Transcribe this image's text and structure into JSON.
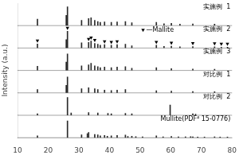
{
  "chart_data": {
    "type": "bar",
    "ylabel": "Intensity (a.u.)",
    "xlim": [
      10,
      80
    ],
    "xticks": [
      10,
      20,
      30,
      40,
      50,
      60,
      70,
      80
    ],
    "ylim": [
      0,
      1.2
    ],
    "tick_labels": "x",
    "grid": false,
    "color": "#2a2a2a",
    "annotations": [
      "—Mallite"
    ],
    "series": [
      {
        "name": "实施例  1",
        "x": [
          16.5,
          25.9,
          26.3,
          30.9,
          33.2,
          34.0,
          35.2,
          36.2,
          37.0,
          38.4,
          40.6,
          42.5,
          45.2,
          47.3,
          55.3,
          57.8,
          60.2,
          63.0,
          67.2,
          74.3
        ],
        "values": [
          0.35,
          0.55,
          1.0,
          0.28,
          0.38,
          0.42,
          0.28,
          0.22,
          0.18,
          0.2,
          0.18,
          0.2,
          0.22,
          0.15,
          0.18,
          0.1,
          0.12,
          0.08,
          0.09,
          0.08
        ]
      },
      {
        "name": "实施例  2",
        "x": [
          16.5,
          25.9,
          26.3,
          30.9,
          33.2,
          34.0,
          35.2,
          36.2,
          37.0,
          38.4,
          40.6,
          42.5,
          45.2,
          47.3,
          55.3,
          57.8,
          60.2,
          63.0,
          67.2,
          74.3,
          76.5,
          78.5
        ],
        "values": [
          0.22,
          0.45,
          0.9,
          0.28,
          0.3,
          0.38,
          0.25,
          0.2,
          0.15,
          0.18,
          0.15,
          0.18,
          0.2,
          0.12,
          0.15,
          0.09,
          0.1,
          0.07,
          0.08,
          0.07,
          0.05,
          0.05
        ],
        "marked_peaks": [
          16.5,
          26.3,
          33.2,
          34.0,
          35.2,
          38.4,
          40.6,
          42.5,
          55.3,
          60.2,
          67.2,
          74.3,
          76.5,
          78.5
        ],
        "marker": "triangle_down"
      },
      {
        "name": "实施例  3",
        "x": [
          16.5,
          25.9,
          26.3,
          30.9,
          33.2,
          34.0,
          35.2,
          36.2,
          37.0,
          38.4,
          40.6,
          42.5,
          45.2,
          47.3,
          55.3,
          60.2,
          67.2,
          74.3
        ],
        "values": [
          0.22,
          0.45,
          0.88,
          0.25,
          0.3,
          0.38,
          0.25,
          0.2,
          0.15,
          0.18,
          0.15,
          0.18,
          0.2,
          0.12,
          0.15,
          0.1,
          0.08,
          0.07
        ]
      },
      {
        "name": "对比例  1",
        "x": [
          16.5,
          25.9,
          26.3,
          30.9,
          33.2,
          35.2,
          36.2,
          38.4,
          40.6,
          42.5,
          45.2,
          55.3,
          60.2,
          67.2,
          74.3
        ],
        "values": [
          0.18,
          0.4,
          0.85,
          0.22,
          0.28,
          0.22,
          0.18,
          0.15,
          0.13,
          0.15,
          0.18,
          0.12,
          0.09,
          0.07,
          0.06
        ]
      },
      {
        "name": "对比例  2",
        "x": [
          16.5,
          26.3,
          27.5,
          33.2,
          36.2,
          39.5,
          40.6,
          45.2,
          47.3,
          59.8,
          67.2,
          68.1
        ],
        "values": [
          0.08,
          0.95,
          0.12,
          0.15,
          0.12,
          0.1,
          0.08,
          0.1,
          0.08,
          0.55,
          0.08,
          0.06
        ]
      },
      {
        "name": "Mullite(PDF⁴ 15-0776)",
        "x": [
          16.5,
          26.3,
          30.9,
          32.8,
          33.2,
          35.2,
          36.2,
          37.0,
          38.4,
          39.3,
          40.6,
          42.5,
          45.2,
          46.0,
          47.3,
          48.6,
          50.8,
          55.3,
          57.5,
          60.2,
          62.5,
          64.8,
          66.5,
          67.2,
          68.8,
          71.0,
          74.3,
          76.1,
          78.5
        ],
        "values": [
          0.1,
          0.9,
          0.15,
          0.22,
          0.28,
          0.18,
          0.15,
          0.1,
          0.12,
          0.08,
          0.1,
          0.12,
          0.14,
          0.07,
          0.08,
          0.06,
          0.05,
          0.1,
          0.05,
          0.07,
          0.05,
          0.05,
          0.06,
          0.05,
          0.04,
          0.04,
          0.05,
          0.04,
          0.04
        ]
      }
    ]
  }
}
